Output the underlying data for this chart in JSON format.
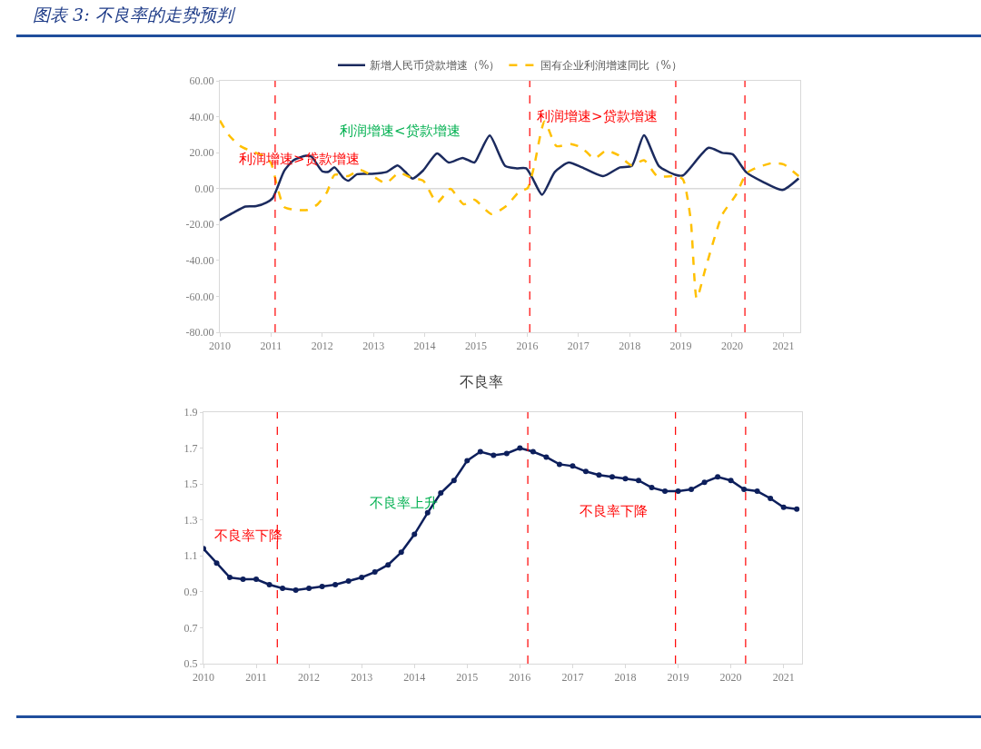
{
  "chart_data": [
    {
      "type": "line",
      "title": "图表 3:  不良率的走势预判",
      "legend": "top",
      "grid": false,
      "xlim": [
        2010,
        2021.33
      ],
      "xticks": [
        2010,
        2011,
        2012,
        2013,
        2014,
        2015,
        2016,
        2017,
        2018,
        2019,
        2020,
        2021
      ],
      "ylim": [
        -80,
        60
      ],
      "yticks": [
        {
          "value": -80,
          "label": "-80.00"
        },
        {
          "value": -60,
          "label": "-60.00"
        },
        {
          "value": -40,
          "label": "-40.00"
        },
        {
          "value": -20,
          "label": "-20.00"
        },
        {
          "value": 0,
          "label": "0.00"
        },
        {
          "value": 20,
          "label": "20.00"
        },
        {
          "value": 40,
          "label": "40.00"
        },
        {
          "value": 60,
          "label": "60.00"
        }
      ],
      "series": [
        {
          "name": "新增人民币贷款增速（%）",
          "color": "#1b2a5e",
          "line_style": "solid",
          "x": [
            2010,
            2010.26,
            2010.5,
            2010.71,
            2010.91,
            2011.03,
            2011.12,
            2011.26,
            2011.44,
            2011.68,
            2011.79,
            2012,
            2012.12,
            2012.24,
            2012.41,
            2012.51,
            2012.68,
            2012.97,
            2013.26,
            2013.47,
            2013.62,
            2013.76,
            2013.97,
            2014.24,
            2014.47,
            2014.74,
            2014.97,
            2015.09,
            2015.27,
            2015.57,
            2015.78,
            2015.98,
            2016.1,
            2016.29,
            2016.54,
            2016.81,
            2017.07,
            2017.48,
            2017.81,
            2018.04,
            2018.28,
            2018.57,
            2018.89,
            2019.04,
            2019.54,
            2019.81,
            2020.01,
            2020.28,
            2020.61,
            2020.98,
            2021.3
          ],
          "values": [
            -17.6,
            -13.5,
            -10,
            -9.8,
            -7.8,
            -5.4,
            0.3,
            10,
            15.8,
            18.3,
            17.8,
            9.6,
            9.3,
            11.8,
            6,
            4.4,
            8,
            8.2,
            9.3,
            12.9,
            9.3,
            5.6,
            10.1,
            19.6,
            14.5,
            17.1,
            14.5,
            20.7,
            29.5,
            12.6,
            11.3,
            11.3,
            6,
            -3.4,
            9.3,
            14.5,
            11.8,
            6.9,
            11.8,
            12.6,
            29.7,
            12.6,
            7.7,
            7.3,
            22.7,
            19.9,
            19.1,
            9,
            3.6,
            -0.8,
            5.7
          ]
        },
        {
          "name": "国有企业利润增速同比（%）",
          "color": "#ffc000",
          "line_style": "dashed",
          "x": [
            2010,
            2010.18,
            2010.38,
            2010.62,
            2010.85,
            2011,
            2011.12,
            2011.26,
            2011.5,
            2011.71,
            2011.91,
            2012.09,
            2012.24,
            2012.5,
            2012.74,
            2012.97,
            2013.24,
            2013.5,
            2013.74,
            2013.97,
            2014.24,
            2014.5,
            2014.76,
            2014.97,
            2015.3,
            2015.6,
            2015.84,
            2016.01,
            2016.13,
            2016.34,
            2016.57,
            2016.86,
            2017.07,
            2017.31,
            2017.54,
            2017.78,
            2018.04,
            2018.28,
            2018.54,
            2018.92,
            2019.04,
            2019.19,
            2019.31,
            2019.48,
            2019.81,
            2020.07,
            2020.28,
            2020.42,
            2020.78,
            2021.01,
            2021.3
          ],
          "values": [
            37.9,
            29.7,
            24,
            20.7,
            18.3,
            14.2,
            1.1,
            -10.3,
            -11.9,
            -11.9,
            -8.7,
            -2.1,
            7.7,
            6.9,
            10.4,
            7.2,
            3.1,
            8.8,
            6,
            4.4,
            -7.8,
            -0.2,
            -8.7,
            -6.2,
            -14.2,
            -9.5,
            -1.8,
            0.3,
            11.8,
            37.4,
            23.7,
            24.8,
            22.7,
            16.7,
            21.1,
            18.6,
            12.9,
            15.8,
            6.9,
            6.9,
            5.2,
            -16.8,
            -61.2,
            -44.6,
            -14.4,
            -3.8,
            8.5,
            10.9,
            14.2,
            13.4,
            6.9
          ]
        }
      ],
      "ref_lines": [
        {
          "axis": "y",
          "value": 0,
          "color": "#d9d9d9",
          "line_style": "solid"
        },
        {
          "axis": "x",
          "value": 2011.08,
          "color": "#ff0000",
          "line_style": "dashed"
        },
        {
          "axis": "x",
          "value": 2016.05,
          "color": "#ff0000",
          "line_style": "dashed"
        },
        {
          "axis": "x",
          "value": 2018.9,
          "color": "#ff0000",
          "line_style": "dashed"
        },
        {
          "axis": "x",
          "value": 2020.25,
          "color": "#ff0000",
          "line_style": "dashed"
        }
      ],
      "annotations": [
        "利润增速>贷款增速",
        "利润增速<贷款增速",
        "利润增速>贷款增速"
      ]
    },
    {
      "type": "line",
      "title": "不良率",
      "grid": false,
      "marker": "circle",
      "xlim": [
        2010,
        2021.35
      ],
      "xticks": [
        2010,
        2011,
        2012,
        2013,
        2014,
        2015,
        2016,
        2017,
        2018,
        2019,
        2020,
        2021
      ],
      "ylim": [
        0.5,
        1.9
      ],
      "yticks": [
        0.5,
        0.7,
        0.9,
        1.1,
        1.3,
        1.5,
        1.7,
        1.9
      ],
      "series": [
        {
          "color": "#0d1f5c",
          "x": [
            2010,
            2010.25,
            2010.5,
            2010.75,
            2011,
            2011.25,
            2011.5,
            2011.75,
            2012,
            2012.25,
            2012.5,
            2012.75,
            2013,
            2013.25,
            2013.5,
            2013.75,
            2014,
            2014.25,
            2014.5,
            2014.75,
            2015,
            2015.25,
            2015.5,
            2015.75,
            2016,
            2016.25,
            2016.5,
            2016.75,
            2017,
            2017.25,
            2017.5,
            2017.75,
            2018,
            2018.25,
            2018.5,
            2018.75,
            2019,
            2019.25,
            2019.5,
            2019.75,
            2020,
            2020.25,
            2020.5,
            2020.75,
            2021,
            2021.25
          ],
          "values": [
            1.14,
            1.06,
            0.98,
            0.97,
            0.97,
            0.94,
            0.92,
            0.91,
            0.92,
            0.93,
            0.94,
            0.96,
            0.98,
            1.01,
            1.05,
            1.12,
            1.22,
            1.34,
            1.45,
            1.52,
            1.63,
            1.68,
            1.66,
            1.67,
            1.7,
            1.68,
            1.65,
            1.61,
            1.6,
            1.57,
            1.55,
            1.54,
            1.53,
            1.52,
            1.48,
            1.46,
            1.46,
            1.47,
            1.51,
            1.54,
            1.52,
            1.47,
            1.46,
            1.42,
            1.37,
            1.36
          ]
        }
      ],
      "ref_lines": [
        {
          "axis": "x",
          "value": 2011.4,
          "color": "#ff0000",
          "line_style": "dashed"
        },
        {
          "axis": "x",
          "value": 2016.15,
          "color": "#ff0000",
          "line_style": "dashed"
        },
        {
          "axis": "x",
          "value": 2018.95,
          "color": "#ff0000",
          "line_style": "dashed"
        },
        {
          "axis": "x",
          "value": 2020.28,
          "color": "#ff0000",
          "line_style": "dashed"
        }
      ],
      "annotations": [
        "不良率下降",
        "不良率上升",
        "不良率下降"
      ]
    }
  ]
}
